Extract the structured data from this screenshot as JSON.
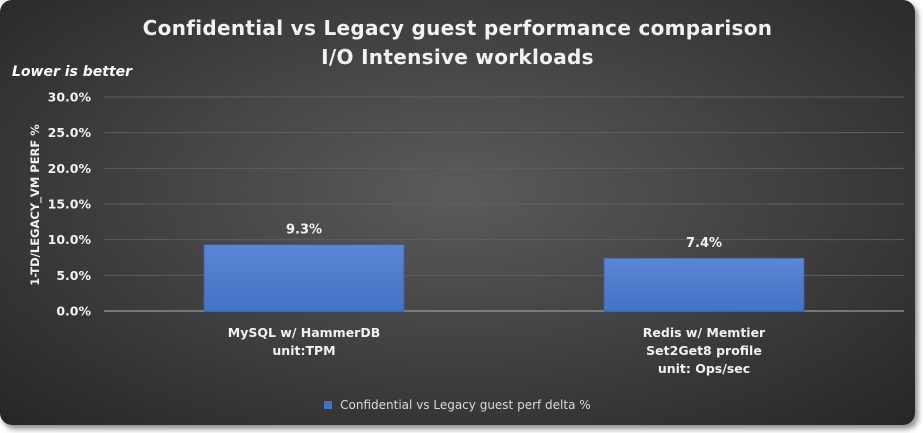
{
  "chart_data": {
    "type": "bar",
    "title": "Confidential vs Legacy guest performance comparison",
    "subtitle": "I/O Intensive workloads",
    "annotation": "Lower is better",
    "ylabel": "1-TD/LEGACY_VM PERF %",
    "xlabel": "",
    "ylim": [
      0,
      30
    ],
    "y_ticks": [
      "0.0%",
      "5.0%",
      "10.0%",
      "15.0%",
      "20.0%",
      "25.0%",
      "30.0%"
    ],
    "grid": true,
    "legend_position": "bottom",
    "categories": [
      [
        "MySQL w/ HammerDB",
        "unit:TPM"
      ],
      [
        "Redis w/ Memtier",
        "Set2Get8 profile",
        "unit: Ops/sec"
      ]
    ],
    "series": [
      {
        "name": "Confidential vs Legacy guest perf delta %",
        "values": [
          9.3,
          7.4
        ],
        "labels": [
          "9.3%",
          "7.4%"
        ],
        "color": "#4472c4"
      }
    ]
  }
}
